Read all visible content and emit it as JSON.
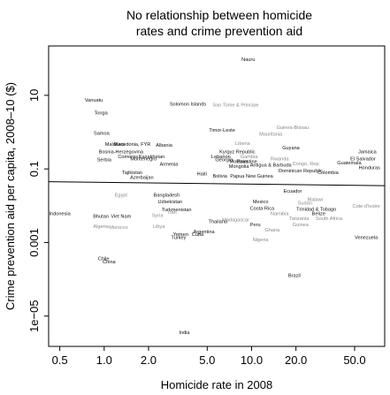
{
  "chart_data": {
    "type": "scatter",
    "title_lines": [
      "No relationship between homicide",
      "rates and crime prevention aid"
    ],
    "xlabel": "Homicide rate in 2008",
    "ylabel": "Crime prevention aid per capita, 2008–10 ($)",
    "x_scale": "log",
    "y_scale": "log",
    "xlim": [
      0.42,
      80
    ],
    "ylim": [
      1.5e-06,
      220
    ],
    "x_ticks": [
      {
        "value": 0.5,
        "label": "0.5"
      },
      {
        "value": 1,
        "label": "1.0"
      },
      {
        "value": 2,
        "label": "2.0"
      },
      {
        "value": 5,
        "label": "5.0"
      },
      {
        "value": 10,
        "label": "10.0"
      },
      {
        "value": 20,
        "label": "20.0"
      },
      {
        "value": 50,
        "label": "50.0"
      }
    ],
    "y_ticks": [
      {
        "value": 10,
        "label": "10"
      },
      {
        "value": 0.1,
        "label": "0.1"
      },
      {
        "value": 0.001,
        "label": "0.001"
      },
      {
        "value": 1e-05,
        "label": "1e−05"
      }
    ],
    "trend_line": {
      "x": [
        0.42,
        80
      ],
      "y": [
        0.045,
        0.035
      ]
    },
    "grid": false,
    "points": [
      {
        "label": "Nauru",
        "x": 9.5,
        "y": 95,
        "color": "#111111"
      },
      {
        "label": "Vanuatu",
        "x": 0.85,
        "y": 7.5,
        "color": "#111111"
      },
      {
        "label": "Tonga",
        "x": 0.95,
        "y": 3.4,
        "color": "#111111"
      },
      {
        "label": "Solomon Islands",
        "x": 3.7,
        "y": 5.8,
        "color": "#111111"
      },
      {
        "label": "Sao Tome & Principe",
        "x": 7.8,
        "y": 5.5,
        "color": "#888888"
      },
      {
        "label": "Samoa",
        "x": 0.96,
        "y": 0.95,
        "color": "#111111"
      },
      {
        "label": "Timor-Leste",
        "x": 6.3,
        "y": 1.15,
        "color": "#111111"
      },
      {
        "label": "Guinea-Bissau",
        "x": 19,
        "y": 1.35,
        "color": "#888888"
      },
      {
        "label": "Mauritania",
        "x": 13.5,
        "y": 0.9,
        "color": "#888888"
      },
      {
        "label": "Maldives",
        "x": 1.18,
        "y": 0.48,
        "color": "#111111"
      },
      {
        "label": "Macedonia, FYR",
        "x": 1.55,
        "y": 0.48,
        "color": "#111111"
      },
      {
        "label": "Albania",
        "x": 2.55,
        "y": 0.45,
        "color": "#111111"
      },
      {
        "label": "Bosnia-Herzegovina",
        "x": 1.3,
        "y": 0.3,
        "color": "#111111"
      },
      {
        "label": "Comoros",
        "x": 1.45,
        "y": 0.22,
        "color": "#111111"
      },
      {
        "label": "Montenegro",
        "x": 1.85,
        "y": 0.19,
        "color": "#111111"
      },
      {
        "label": "Kazakhstan",
        "x": 2.1,
        "y": 0.22,
        "color": "#111111"
      },
      {
        "label": "Serbia",
        "x": 1.0,
        "y": 0.18,
        "color": "#111111"
      },
      {
        "label": "Liberia",
        "x": 8.7,
        "y": 0.5,
        "color": "#888888"
      },
      {
        "label": "Guyana",
        "x": 18.5,
        "y": 0.38,
        "color": "#111111"
      },
      {
        "label": "Jamaica",
        "x": 61,
        "y": 0.3,
        "color": "#111111"
      },
      {
        "label": "Kyrgyz Republic",
        "x": 8.0,
        "y": 0.3,
        "color": "#111111"
      },
      {
        "label": "Lebanon",
        "x": 6.2,
        "y": 0.22,
        "color": "#111111"
      },
      {
        "label": "Gambia",
        "x": 9.6,
        "y": 0.22,
        "color": "#888888"
      },
      {
        "label": "Georgia",
        "x": 6.5,
        "y": 0.18,
        "color": "#111111"
      },
      {
        "label": "Moldova",
        "x": 8.2,
        "y": 0.16,
        "color": "#111111"
      },
      {
        "label": "Palestine",
        "x": 9.3,
        "y": 0.16,
        "color": "#111111"
      },
      {
        "label": "Mongolia",
        "x": 8.2,
        "y": 0.12,
        "color": "#111111"
      },
      {
        "label": "Rwanda",
        "x": 15.5,
        "y": 0.19,
        "color": "#888888"
      },
      {
        "label": "El Salvador",
        "x": 57,
        "y": 0.19,
        "color": "#111111"
      },
      {
        "label": "Congo, Rep.",
        "x": 23.5,
        "y": 0.14,
        "color": "#888888"
      },
      {
        "label": "Guatemala",
        "x": 46,
        "y": 0.15,
        "color": "#111111"
      },
      {
        "label": "Honduras",
        "x": 63,
        "y": 0.11,
        "color": "#111111"
      },
      {
        "label": "Armenia",
        "x": 2.75,
        "y": 0.135,
        "color": "#111111"
      },
      {
        "label": "Tajikistan",
        "x": 1.55,
        "y": 0.08,
        "color": "#111111"
      },
      {
        "label": "Azerbaijan",
        "x": 1.8,
        "y": 0.06,
        "color": "#111111"
      },
      {
        "label": "Haiti",
        "x": 4.6,
        "y": 0.075,
        "color": "#111111"
      },
      {
        "label": "Bolivia",
        "x": 6.1,
        "y": 0.065,
        "color": "#111111"
      },
      {
        "label": "Antigua & Barbuda",
        "x": 13.5,
        "y": 0.13,
        "color": "#111111"
      },
      {
        "label": "Papua New Guinea",
        "x": 10,
        "y": 0.065,
        "color": "#111111"
      },
      {
        "label": "Dominican Republic",
        "x": 21.5,
        "y": 0.09,
        "color": "#111111"
      },
      {
        "label": "Colombia",
        "x": 33,
        "y": 0.08,
        "color": "#111111"
      },
      {
        "label": "Egypt",
        "x": 1.3,
        "y": 0.02,
        "color": "#888888"
      },
      {
        "label": "Bangladesh",
        "x": 2.65,
        "y": 0.02,
        "color": "#111111"
      },
      {
        "label": "Uzbekistan",
        "x": 2.8,
        "y": 0.013,
        "color": "#111111"
      },
      {
        "label": "Indonesia",
        "x": 0.5,
        "y": 0.0062,
        "color": "#111111"
      },
      {
        "label": "Bhutan",
        "x": 0.95,
        "y": 0.0052,
        "color": "#111111"
      },
      {
        "label": "Viet Nam",
        "x": 1.3,
        "y": 0.0052,
        "color": "#111111"
      },
      {
        "label": "Syria",
        "x": 2.3,
        "y": 0.0055,
        "color": "#888888"
      },
      {
        "label": "Iran",
        "x": 2.9,
        "y": 0.0068,
        "color": "#888888"
      },
      {
        "label": "Turkmenistan",
        "x": 3.1,
        "y": 0.008,
        "color": "#111111"
      },
      {
        "label": "Mexico",
        "x": 11.5,
        "y": 0.013,
        "color": "#111111"
      },
      {
        "label": "Costa Rica",
        "x": 11.8,
        "y": 0.0085,
        "color": "#111111"
      },
      {
        "label": "Ecuador",
        "x": 19,
        "y": 0.025,
        "color": "#111111"
      },
      {
        "label": "Sudan",
        "x": 23,
        "y": 0.012,
        "color": "#888888"
      },
      {
        "label": "Malawi",
        "x": 27,
        "y": 0.015,
        "color": "#888888"
      },
      {
        "label": "Cote d'Ivoire",
        "x": 60,
        "y": 0.01,
        "color": "#888888"
      },
      {
        "label": "Namibia",
        "x": 15.5,
        "y": 0.0062,
        "color": "#888888"
      },
      {
        "label": "Trinidad & Tobago",
        "x": 27.5,
        "y": 0.0082,
        "color": "#111111"
      },
      {
        "label": "Belize",
        "x": 28.5,
        "y": 0.0062,
        "color": "#111111"
      },
      {
        "label": "Tanzania",
        "x": 21,
        "y": 0.0045,
        "color": "#888888"
      },
      {
        "label": "South Africa",
        "x": 33.5,
        "y": 0.0045,
        "color": "#888888"
      },
      {
        "label": "Algeria",
        "x": 0.95,
        "y": 0.0028,
        "color": "#888888"
      },
      {
        "label": "Morocco",
        "x": 1.25,
        "y": 0.0026,
        "color": "#888888"
      },
      {
        "label": "Libya",
        "x": 2.35,
        "y": 0.0028,
        "color": "#888888"
      },
      {
        "label": "Thailand",
        "x": 5.9,
        "y": 0.0038,
        "color": "#111111"
      },
      {
        "label": "Madagascar",
        "x": 7.8,
        "y": 0.0042,
        "color": "#888888"
      },
      {
        "label": "Peru",
        "x": 10.6,
        "y": 0.0031,
        "color": "#111111"
      },
      {
        "label": "Guinea",
        "x": 21.5,
        "y": 0.0031,
        "color": "#888888"
      },
      {
        "label": "Ghana",
        "x": 13.8,
        "y": 0.0022,
        "color": "#888888"
      },
      {
        "label": "Yemen",
        "x": 3.3,
        "y": 0.0017,
        "color": "#111111"
      },
      {
        "label": "Cuba",
        "x": 4.3,
        "y": 0.0017,
        "color": "#111111"
      },
      {
        "label": "Argentina",
        "x": 4.75,
        "y": 0.002,
        "color": "#111111"
      },
      {
        "label": "Turkey",
        "x": 3.2,
        "y": 0.0014,
        "color": "#111111"
      },
      {
        "label": "Nigeria",
        "x": 11.5,
        "y": 0.0012,
        "color": "#888888"
      },
      {
        "label": "Venezuela",
        "x": 60,
        "y": 0.0014,
        "color": "#111111"
      },
      {
        "label": "Chile",
        "x": 0.99,
        "y": 0.00037,
        "color": "#111111"
      },
      {
        "label": "China",
        "x": 1.08,
        "y": 0.0003,
        "color": "#111111"
      },
      {
        "label": "Brazil",
        "x": 19.5,
        "y": 0.00013,
        "color": "#111111"
      },
      {
        "label": "India",
        "x": 3.5,
        "y": 3.6e-06,
        "color": "#111111"
      }
    ]
  }
}
